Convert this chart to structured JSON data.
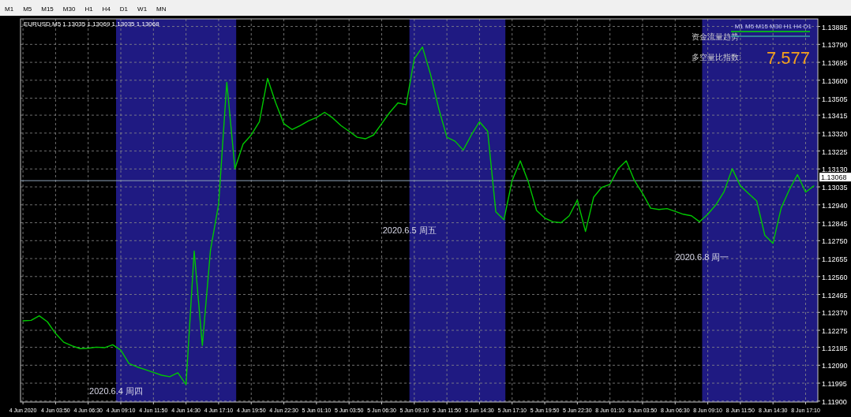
{
  "chart_data": {
    "type": "line",
    "title": "EURUSD,M5  1.13035 1.13069 1.13035 1.13068",
    "annotations": [
      "M1 M5 M15 M30 H1 H4 D1 W1 MN",
      "M1 M5 M15 M30 H1 H4 D1",
      "资金流量趋势",
      "多空量比指数:",
      "7.577",
      "2020.6.4 周四",
      "2020.6.5 周五",
      "2020.6.8 周一"
    ],
    "categories": [
      "4 Jun 2020",
      null,
      null,
      null,
      "4 Jun 03:50",
      null,
      null,
      null,
      "4 Jun 06:30",
      null,
      null,
      null,
      "4 Jun 09:10",
      null,
      null,
      null,
      "4 Jun 11:50",
      null,
      null,
      null,
      "4 Jun 14:30",
      null,
      null,
      null,
      "4 Jun 17:10",
      null,
      null,
      null,
      "4 Jun 19:50",
      null,
      null,
      null,
      "4 Jun 22:30",
      null,
      null,
      null,
      "5 Jun 01:10",
      null,
      null,
      null,
      "5 Jun 03:50",
      null,
      null,
      null,
      "5 Jun 06:30",
      null,
      null,
      null,
      "5 Jun 09:10",
      null,
      null,
      null,
      "5 Jun 11:50",
      null,
      null,
      null,
      "5 Jun 14:30",
      null,
      null,
      null,
      "5 Jun 17:10",
      null,
      null,
      null,
      "5 Jun 19:50",
      null,
      null,
      null,
      "5 Jun 22:30",
      null,
      null,
      null,
      "8 Jun 01:10",
      null,
      null,
      null,
      "8 Jun 03:50",
      null,
      null,
      null,
      "8 Jun 06:30",
      null,
      null,
      null,
      "8 Jun 09:10",
      null,
      null,
      null,
      "8 Jun 11:50",
      null,
      null,
      null,
      "8 Jun 14:30",
      null,
      null,
      null,
      "8 Jun 17:10",
      null
    ],
    "series": [
      {
        "color": "#00c800",
        "values": [
          1.12325,
          1.12328,
          1.12352,
          1.1232,
          1.12258,
          1.12212,
          1.12193,
          1.12178,
          1.1218,
          1.12186,
          1.12183,
          1.12198,
          1.1217,
          1.12099,
          1.12081,
          1.12067,
          1.12052,
          1.12037,
          1.12029,
          1.1205,
          1.11987,
          1.12695,
          1.12195,
          1.127,
          1.12944,
          1.13589,
          1.13131,
          1.13262,
          1.1331,
          1.1338,
          1.1361,
          1.1348,
          1.1337,
          1.13339,
          1.1336,
          1.13385,
          1.13402,
          1.1343,
          1.134,
          1.1336,
          1.1333,
          1.13298,
          1.1329,
          1.1331,
          1.1337,
          1.1343,
          1.1348,
          1.1347,
          1.13714,
          1.13776,
          1.1363,
          1.1345,
          1.13298,
          1.13277,
          1.1323,
          1.1331,
          1.1338,
          1.1333,
          1.12903,
          1.12861,
          1.13069,
          1.13173,
          1.1306,
          1.1291,
          1.1287,
          1.1285,
          1.12845,
          1.12882,
          1.12965,
          1.12799,
          1.1298,
          1.13033,
          1.13048,
          1.13131,
          1.13173,
          1.13069,
          1.13,
          1.12922,
          1.12915,
          1.1292,
          1.12905,
          1.1289,
          1.12882,
          1.1285,
          1.1289,
          1.1294,
          1.1301,
          1.13131,
          1.1304,
          1.13,
          1.1296,
          1.12778,
          1.12736,
          1.12923,
          1.1302,
          1.131,
          1.13007,
          1.1304
        ]
      }
    ],
    "ylim": [
      1.11895,
      1.13925
    ],
    "yticks": [
      {
        "value": 1.119,
        "label": "1.11900"
      },
      {
        "value": 1.11995,
        "label": "1.11995"
      },
      {
        "value": 1.1209,
        "label": "1.12090"
      },
      {
        "value": 1.12185,
        "label": "1.12185"
      },
      {
        "value": 1.12275,
        "label": "1.12275"
      },
      {
        "value": 1.1237,
        "label": "1.12370"
      },
      {
        "value": 1.12465,
        "label": "1.12465"
      },
      {
        "value": 1.1256,
        "label": "1.12560"
      },
      {
        "value": 1.12655,
        "label": "1.12655"
      },
      {
        "value": 1.1275,
        "label": "1.12750"
      },
      {
        "value": 1.12845,
        "label": "1.12845"
      },
      {
        "value": 1.1294,
        "label": "1.12940"
      },
      {
        "value": 1.13035,
        "label": "1.13035"
      },
      {
        "value": 1.1313,
        "label": "1.13130"
      },
      {
        "value": 1.13225,
        "label": "1.13225"
      },
      {
        "value": 1.1332,
        "label": "1.13320"
      },
      {
        "value": 1.13415,
        "label": "1.13415"
      },
      {
        "value": 1.13505,
        "label": "1.13505"
      },
      {
        "value": 1.136,
        "label": "1.13600"
      },
      {
        "value": 1.13695,
        "label": "1.13695"
      },
      {
        "value": 1.1379,
        "label": "1.13790"
      },
      {
        "value": 1.13885,
        "label": "1.13885"
      }
    ],
    "ref_lines": [
      {
        "axis": "y",
        "value": 1.13068,
        "label": "1.13068",
        "color": "#8fa3b8"
      }
    ],
    "grid": true,
    "marker": "none",
    "line_style": "solid"
  }
}
